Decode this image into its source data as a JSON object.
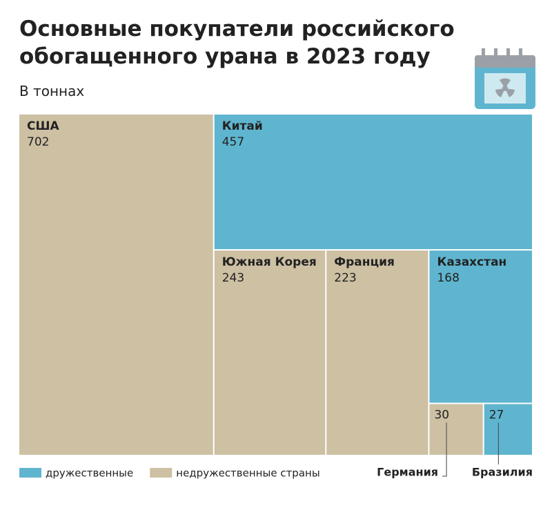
{
  "chart_data": {
    "type": "treemap",
    "title": "Основные покупатели российского обогащенного урана в 2023 году",
    "subtitle": "В тоннах",
    "categories": [
      "США",
      "Китай",
      "Южная Корея",
      "Франция",
      "Казахстан",
      "Германия",
      "Бразилия"
    ],
    "values": [
      702,
      457,
      243,
      223,
      168,
      30,
      27
    ],
    "groups": [
      1,
      0,
      1,
      1,
      0,
      1,
      0
    ],
    "series": [
      {
        "name": "дружественные",
        "color": "#5fb5cf"
      },
      {
        "name": "недружественные страны",
        "color": "#cdc0a3"
      }
    ]
  }
}
